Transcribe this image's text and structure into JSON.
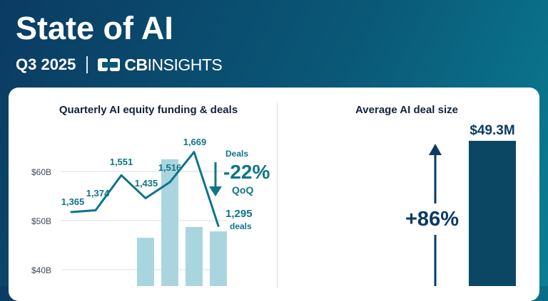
{
  "header": {
    "title": "State of AI",
    "period": "Q3 2025",
    "brand": {
      "cb": "CB",
      "insights": "INSIGHTS"
    }
  },
  "colors": {
    "bars": "#a9d6de",
    "line": "#0f7488",
    "right_bar": "#0b4763",
    "navy": "#0b3b63"
  },
  "chart_data": [
    {
      "type": "bar",
      "title": "Quarterly AI equity funding & deals",
      "yticks": [
        "$40B",
        "$50B",
        "$60B"
      ],
      "ylim": [
        34,
        84
      ],
      "bars": [
        null,
        null,
        null,
        46.5,
        62.5,
        48.7,
        47.8
      ],
      "series": [
        {
          "name": "Deals",
          "type": "line",
          "values": [
            1365,
            1374,
            1551,
            1435,
            1516,
            1669,
            1295
          ],
          "labels": [
            "1,365",
            "1,374",
            "1,551",
            "1,435",
            "1,516",
            "1,669",
            "1,295"
          ]
        }
      ],
      "annotation": {
        "series_label": "Deals",
        "change": "-22%",
        "basis": "QoQ",
        "last_unit": "deals"
      }
    },
    {
      "type": "bar",
      "title": "Average AI deal size",
      "values": [
        49.3
      ],
      "value_label": "$49.3M",
      "change": "+86%"
    }
  ]
}
